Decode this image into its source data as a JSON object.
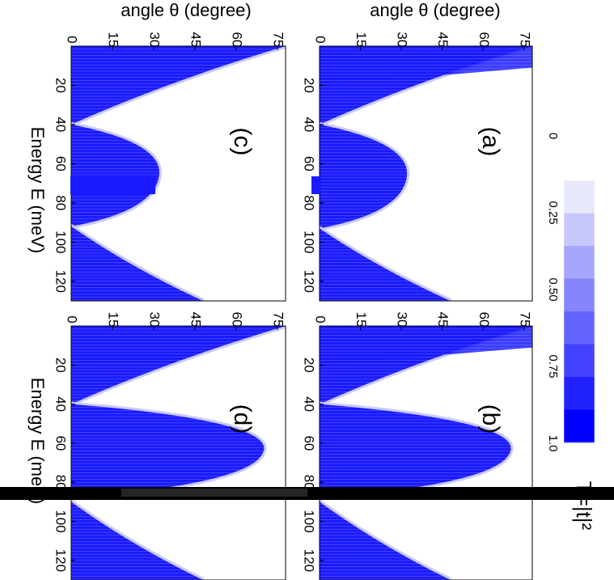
{
  "chart_data": [
    {
      "type": "heatmap",
      "panel": "(a)",
      "xlabel": "angle  θ (degree)",
      "ylabel": "",
      "x_ticks": [
        "0",
        "15",
        "30",
        "45",
        "60",
        "75"
      ],
      "y_ticks": [
        "20",
        "40",
        "60",
        "80",
        "100",
        "120"
      ],
      "xlim": [
        0,
        78
      ],
      "ylim": [
        0,
        130
      ],
      "bands": [
        {
          "E_from": 0,
          "E_to": 40,
          "theta_max_at_start": 78,
          "theta_max_at_end": 0
        },
        {
          "E_from": 40,
          "E_to": 93,
          "theta_max_at_start": 0,
          "theta_max_at_end": 0,
          "theta_peak": 32
        },
        {
          "E_from": 93,
          "E_to": 130,
          "theta_max_at_start": 0,
          "theta_max_at_end": 48
        }
      ],
      "low_energy_wedge": {
        "E_from": 0,
        "E_to": 20,
        "theta_to": 78
      }
    },
    {
      "type": "heatmap",
      "panel": "(b)",
      "xlabel": "",
      "ylabel": "",
      "x_ticks": [
        "0",
        "15",
        "30",
        "45",
        "60",
        "75"
      ],
      "y_ticks": [
        "20",
        "40",
        "60",
        "80",
        "100",
        "120"
      ],
      "xlim": [
        0,
        78
      ],
      "ylim": [
        0,
        130
      ],
      "bands": [
        {
          "E_from": 0,
          "E_to": 40,
          "theta_max_at_start": 78,
          "theta_max_at_end": 0
        },
        {
          "E_from": 40,
          "E_to": 88,
          "theta_max_at_start": 0,
          "theta_max_at_end": 0,
          "theta_peak": 70
        },
        {
          "E_from": 90,
          "E_to": 130,
          "theta_max_at_start": 0,
          "theta_max_at_end": 48
        }
      ],
      "low_energy_wedge": {
        "E_from": 0,
        "E_to": 20,
        "theta_to": 78
      }
    },
    {
      "type": "heatmap",
      "panel": "(c)",
      "xlabel": "angle  θ (degree)",
      "ylabel": "Energy E (meV)",
      "x_ticks": [
        "0",
        "15",
        "30",
        "45",
        "60",
        "75"
      ],
      "y_ticks": [
        "20",
        "40",
        "60",
        "80",
        "100",
        "120"
      ],
      "xlim": [
        0,
        78
      ],
      "ylim": [
        0,
        130
      ],
      "bands": [
        {
          "E_from": 0,
          "E_to": 40,
          "theta_max_at_start": 78,
          "theta_max_at_end": 0
        },
        {
          "E_from": 40,
          "E_to": 92,
          "theta_max_at_start": 0,
          "theta_max_at_end": 0,
          "theta_peak": 32
        },
        {
          "E_from": 92,
          "E_to": 130,
          "theta_max_at_start": 0,
          "theta_max_at_end": 48
        }
      ]
    },
    {
      "type": "heatmap",
      "panel": "(d)",
      "xlabel": "",
      "ylabel": "Energy E (meV)",
      "x_ticks": [
        "0",
        "15",
        "30",
        "45",
        "60",
        "75"
      ],
      "y_ticks": [
        "20",
        "40",
        "60",
        "80",
        "100",
        "120"
      ],
      "xlim": [
        0,
        78
      ],
      "ylim": [
        0,
        130
      ],
      "bands": [
        {
          "E_from": 0,
          "E_to": 40,
          "theta_max_at_start": 78,
          "theta_max_at_end": 0
        },
        {
          "E_from": 40,
          "E_to": 88,
          "theta_max_at_start": 0,
          "theta_max_at_end": 0,
          "theta_peak": 70
        },
        {
          "E_from": 90,
          "E_to": 130,
          "theta_max_at_start": 0,
          "theta_max_at_end": 48
        }
      ]
    }
  ],
  "colorbar": {
    "title": "T=|t|²",
    "ticks": [
      "0",
      "0.25",
      "0.50",
      "0.75",
      "1.0"
    ],
    "min": 0,
    "max": 1,
    "levels": 8,
    "color_low": "#e8e8fb",
    "color_high": "#0000ff"
  },
  "colors": {
    "fill": "#1a1aff",
    "fringe": "#c8c8ff",
    "axis": "#000000",
    "glitch": "#000000"
  }
}
